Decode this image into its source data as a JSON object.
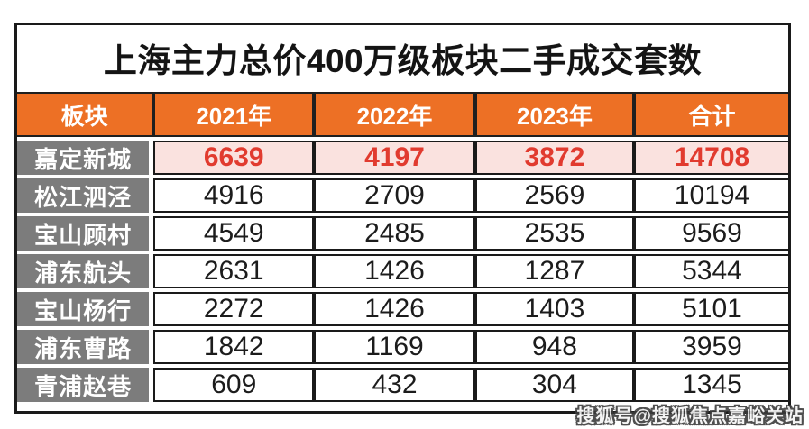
{
  "title": "上海主力总价400万级板块二手成交套数",
  "table": {
    "columns": [
      "板块",
      "2021年",
      "2022年",
      "2023年",
      "合计"
    ],
    "rows": [
      {
        "label": "嘉定新城",
        "values": [
          "6639",
          "4197",
          "3872",
          "14708"
        ],
        "highlighted": true
      },
      {
        "label": "松江泗泾",
        "values": [
          "4916",
          "2709",
          "2569",
          "10194"
        ],
        "highlighted": false
      },
      {
        "label": "宝山顾村",
        "values": [
          "4549",
          "2485",
          "2535",
          "9569"
        ],
        "highlighted": false
      },
      {
        "label": "浦东航头",
        "values": [
          "2631",
          "1426",
          "1287",
          "5344"
        ],
        "highlighted": false
      },
      {
        "label": "宝山杨行",
        "values": [
          "2272",
          "1426",
          "1403",
          "5101"
        ],
        "highlighted": false
      },
      {
        "label": "浦东曹路",
        "values": [
          "1842",
          "1169",
          "948",
          "3959"
        ],
        "highlighted": false
      },
      {
        "label": "青浦赵巷",
        "values": [
          "609",
          "432",
          "304",
          "1345"
        ],
        "highlighted": false
      }
    ]
  },
  "watermark": "搜狐号@搜狐焦点嘉峪关站",
  "colors": {
    "header_bg": "#ED7025",
    "header_text": "#FFFFFF",
    "row_label_bg": "#7C7C7C",
    "row_label_text": "#FFFFFF",
    "highlight_row_bg": "#FAE2DF",
    "highlight_row_text": "#E13B2F",
    "value_text": "#1C1C1C",
    "grid_border": "#1A1A1A",
    "page_bg": "#FFFFFF"
  }
}
